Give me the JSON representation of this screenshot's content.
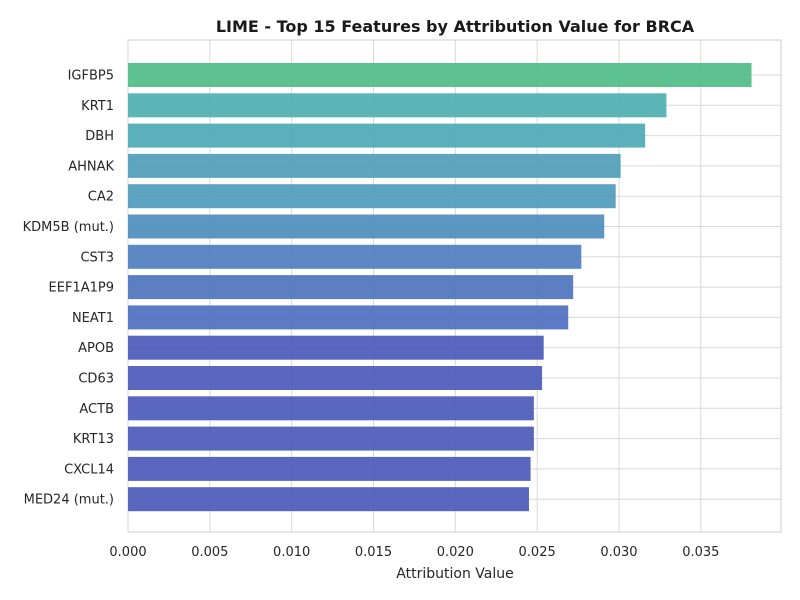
{
  "chart_data": {
    "type": "bar",
    "orientation": "horizontal",
    "title": "LIME - Top 15 Features by Attribution Value for BRCA",
    "xlabel": "Attribution Value",
    "ylabel": "",
    "xlim": [
      0,
      0.0399
    ],
    "xticks": [
      "0.000",
      "0.005",
      "0.010",
      "0.015",
      "0.020",
      "0.025",
      "0.030",
      "0.035"
    ],
    "xtick_values": [
      0,
      0.005,
      0.01,
      0.015,
      0.02,
      0.025,
      0.03,
      0.035
    ],
    "grid": true,
    "legend": "none",
    "categories": [
      "IGFBP5",
      "KRT1",
      "DBH",
      "AHNAK",
      "CA2",
      "KDM5B (mut.)",
      "CST3",
      "EEF1A1P9",
      "NEAT1",
      "APOB",
      "CD63",
      "ACTB",
      "KRT13",
      "CXCL14",
      "MED24 (mut.)"
    ],
    "values": [
      0.0381,
      0.0329,
      0.0316,
      0.0301,
      0.0298,
      0.0291,
      0.0277,
      0.0272,
      0.0269,
      0.0254,
      0.0253,
      0.0248,
      0.0248,
      0.0246,
      0.0245
    ],
    "colors": [
      "#4cbb84",
      "#4aadae",
      "#49a9b4",
      "#4c9cb9",
      "#4d99ba",
      "#4a8bbc",
      "#4a7cbc",
      "#4a71bd",
      "#4a6dbe",
      "#4757b8",
      "#4757b8",
      "#4756b7",
      "#4756b7",
      "#4756b7",
      "#4756b7"
    ]
  }
}
